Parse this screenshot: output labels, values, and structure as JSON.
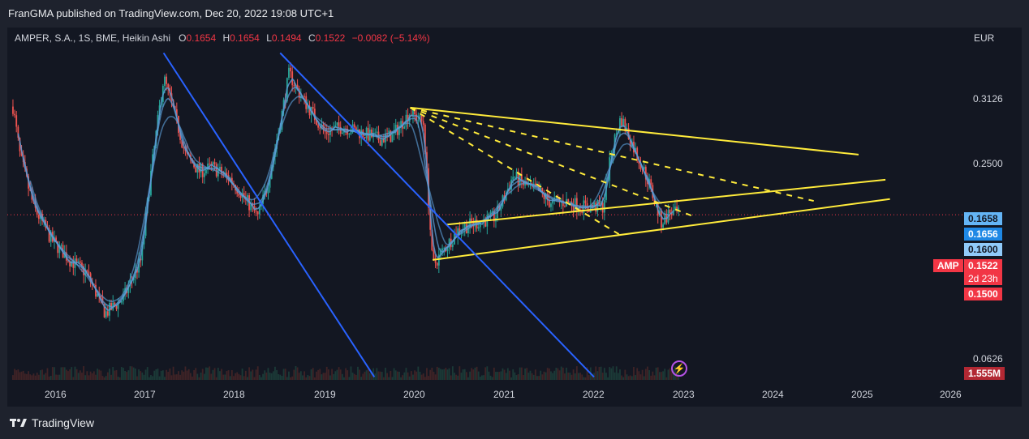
{
  "header": {
    "publisher": "FranGMA published on TradingView.com, Dec 20, 2022 19:08 UTC+1"
  },
  "legend": {
    "symbol": "AMPER, S.A., 1S, BME, Heikin Ashi",
    "open_label": "O",
    "open": "0.1654",
    "high_label": "H",
    "high": "0.1654",
    "low_label": "L",
    "low": "0.1494",
    "close_label": "C",
    "close": "0.1522",
    "change": "−0.0082 (−5.14%)"
  },
  "price_axis": {
    "currency": "EUR",
    "ticks": [
      "0.3126",
      "0.2500",
      "0.0626"
    ]
  },
  "badges": {
    "ma1": "0.1658",
    "ma2": "0.1656",
    "ma3": "0.1600",
    "symbol": "AMP",
    "last": "0.1522",
    "countdown": "2d 23h",
    "low": "0.1500",
    "volume": "1.555M"
  },
  "time_axis": [
    "2016",
    "2017",
    "2018",
    "2019",
    "2020",
    "2021",
    "2022",
    "2023",
    "2024",
    "2025",
    "2026"
  ],
  "brand": "TradingView",
  "colors": {
    "up": "#26a69a",
    "down": "#ef5350",
    "trend_yellow": "#ffeb3b",
    "trend_blue": "#2962ff",
    "ma": "#5b9bd5"
  },
  "chart_data": {
    "type": "candlestick",
    "x_unit": "year",
    "y_scale": "log",
    "y_unit": "EUR",
    "ylim": [
      0.055,
      0.42
    ],
    "xlim": [
      2015.5,
      2026.2
    ],
    "price_path": [
      [
        2015.52,
        0.3
      ],
      [
        2015.6,
        0.22
      ],
      [
        2015.75,
        0.16
      ],
      [
        2015.95,
        0.13
      ],
      [
        2016.15,
        0.115
      ],
      [
        2016.35,
        0.105
      ],
      [
        2016.55,
        0.082
      ],
      [
        2016.75,
        0.09
      ],
      [
        2016.95,
        0.115
      ],
      [
        2017.05,
        0.19
      ],
      [
        2017.2,
        0.36
      ],
      [
        2017.3,
        0.3
      ],
      [
        2017.45,
        0.22
      ],
      [
        2017.6,
        0.2
      ],
      [
        2017.75,
        0.205
      ],
      [
        2017.95,
        0.19
      ],
      [
        2018.1,
        0.17
      ],
      [
        2018.25,
        0.15
      ],
      [
        2018.35,
        0.18
      ],
      [
        2018.5,
        0.27
      ],
      [
        2018.6,
        0.37
      ],
      [
        2018.7,
        0.33
      ],
      [
        2018.85,
        0.29
      ],
      [
        2019.0,
        0.255
      ],
      [
        2019.2,
        0.265
      ],
      [
        2019.4,
        0.255
      ],
      [
        2019.6,
        0.245
      ],
      [
        2019.75,
        0.25
      ],
      [
        2019.95,
        0.29
      ],
      [
        2020.1,
        0.27
      ],
      [
        2020.2,
        0.11
      ],
      [
        2020.3,
        0.12
      ],
      [
        2020.5,
        0.14
      ],
      [
        2020.7,
        0.145
      ],
      [
        2020.9,
        0.15
      ],
      [
        2021.0,
        0.17
      ],
      [
        2021.1,
        0.195
      ],
      [
        2021.2,
        0.185
      ],
      [
        2021.4,
        0.175
      ],
      [
        2021.5,
        0.165
      ],
      [
        2021.7,
        0.165
      ],
      [
        2021.9,
        0.16
      ],
      [
        2022.1,
        0.16
      ],
      [
        2022.2,
        0.23
      ],
      [
        2022.3,
        0.28
      ],
      [
        2022.45,
        0.23
      ],
      [
        2022.6,
        0.19
      ],
      [
        2022.75,
        0.145
      ],
      [
        2022.85,
        0.155
      ],
      [
        2022.96,
        0.1522
      ]
    ],
    "moving_averages": [
      "MA1",
      "MA2",
      "MA3"
    ],
    "trendlines": [
      {
        "color": "yellow",
        "style": "solid",
        "points": [
          [
            2019.95,
            0.298
          ],
          [
            2024.95,
            0.222
          ]
        ]
      },
      {
        "color": "yellow",
        "style": "solid",
        "points": [
          [
            2020.35,
            0.143
          ],
          [
            2025.25,
            0.1896
          ]
        ]
      },
      {
        "color": "yellow",
        "style": "solid",
        "points": [
          [
            2020.2,
            0.1147
          ],
          [
            2025.3,
            0.168
          ]
        ]
      },
      {
        "color": "yellow",
        "style": "dashed",
        "points": [
          [
            2019.95,
            0.298
          ],
          [
            2024.45,
            0.166
          ]
        ]
      },
      {
        "color": "yellow",
        "style": "dashed",
        "points": [
          [
            2019.95,
            0.298
          ],
          [
            2023.1,
            0.151
          ]
        ]
      },
      {
        "color": "yellow",
        "style": "dashed",
        "points": [
          [
            2019.95,
            0.298
          ],
          [
            2022.3,
            0.1337
          ]
        ]
      },
      {
        "color": "blue",
        "style": "solid",
        "points": [
          [
            2017.2,
            0.42
          ],
          [
            2019.55,
            0.055
          ]
        ]
      },
      {
        "color": "blue",
        "style": "solid",
        "points": [
          [
            2018.5,
            0.42
          ],
          [
            2022.0,
            0.055
          ]
        ]
      }
    ]
  }
}
